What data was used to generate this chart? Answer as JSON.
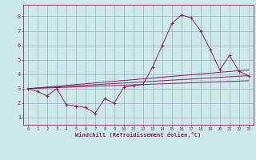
{
  "xlabel": "Windchill (Refroidissement éolien,°C)",
  "bg_color": "#cce8e8",
  "grid_color": "#9999bb",
  "line_color": "#882266",
  "x_ticks": [
    0,
    1,
    2,
    3,
    4,
    5,
    6,
    7,
    8,
    9,
    10,
    11,
    12,
    13,
    14,
    15,
    16,
    17,
    18,
    19,
    20,
    21,
    22,
    23
  ],
  "y_ticks": [
    1,
    2,
    3,
    4,
    5,
    6,
    7,
    8
  ],
  "xlim": [
    -0.5,
    23.5
  ],
  "ylim": [
    0.5,
    8.8
  ],
  "series1_x": [
    0,
    1,
    2,
    3,
    4,
    5,
    6,
    7,
    8,
    9,
    10,
    11,
    12,
    13,
    14,
    15,
    16,
    17,
    18,
    19,
    20,
    21,
    22,
    23
  ],
  "series1_y": [
    3.0,
    2.8,
    2.5,
    3.0,
    1.9,
    1.8,
    1.7,
    1.3,
    2.3,
    2.0,
    3.1,
    3.2,
    3.3,
    4.5,
    6.0,
    7.5,
    8.1,
    7.9,
    7.0,
    5.7,
    4.3,
    5.3,
    4.2,
    3.9
  ],
  "series2_x": [
    0,
    23
  ],
  "series2_y": [
    3.0,
    3.9
  ],
  "series3_x": [
    0,
    23
  ],
  "series3_y": [
    3.0,
    4.3
  ],
  "series4_x": [
    0,
    23
  ],
  "series4_y": [
    3.0,
    3.55
  ]
}
